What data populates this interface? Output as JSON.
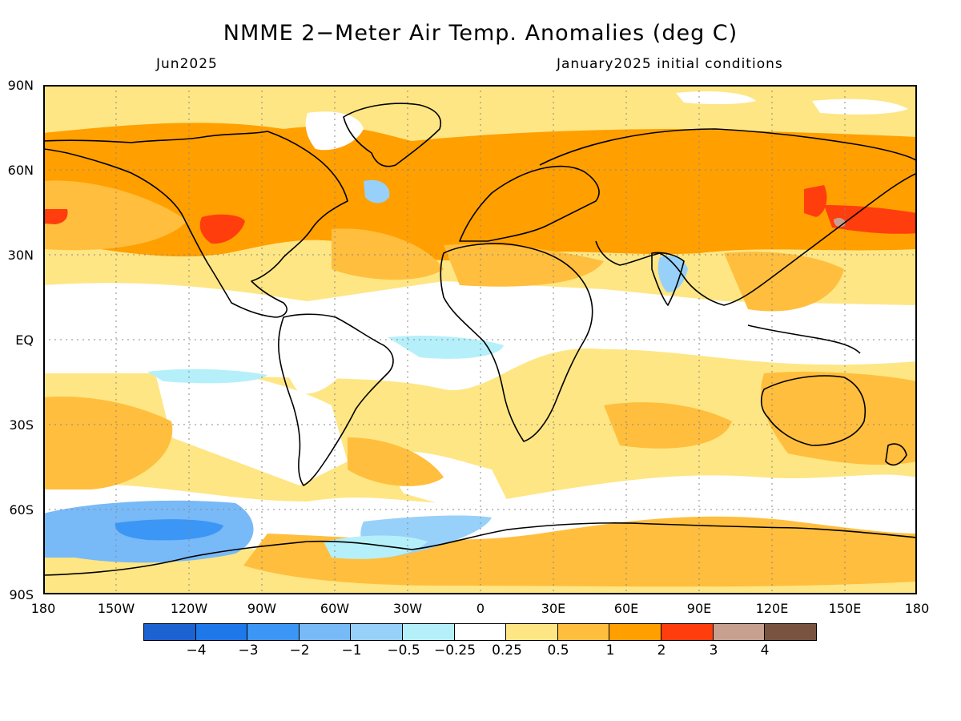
{
  "title": "NMME 2−Meter Air Temp. Anomalies (deg C)",
  "subtitle_left": "Jun2025",
  "subtitle_right": "January2025 initial conditions",
  "lat_labels": [
    "90N",
    "60N",
    "30N",
    "EQ",
    "30S",
    "60S",
    "90S"
  ],
  "lon_labels": [
    "180",
    "150W",
    "120W",
    "90W",
    "60W",
    "30W",
    "0",
    "30E",
    "60E",
    "90E",
    "120E",
    "150E",
    "180"
  ],
  "legend": {
    "colors": [
      "#1c62d1",
      "#1f78ea",
      "#3c96f5",
      "#78b9f7",
      "#97d1fa",
      "#b5f0fa",
      "#ffffff",
      "#fee684",
      "#ffbe3d",
      "#ff9f00",
      "#ff3d0d",
      "#c8a090",
      "#7a5240"
    ],
    "labels": [
      "−4",
      "−3",
      "−2",
      "−1",
      "−0.5",
      "−0.25",
      "0.25",
      "0.5",
      "1",
      "2",
      "3",
      "4"
    ]
  },
  "map_colors": {
    "white": "#ffffff",
    "light_yellow": "#fee684",
    "light_orange": "#ffbe3d",
    "orange": "#ff9f00",
    "red": "#ff3d0d",
    "rose": "#c8a090",
    "cyan": "#b5f0fa",
    "light_blue": "#97d1fa",
    "mid_blue": "#78b9f7",
    "blue": "#3c96f5"
  }
}
